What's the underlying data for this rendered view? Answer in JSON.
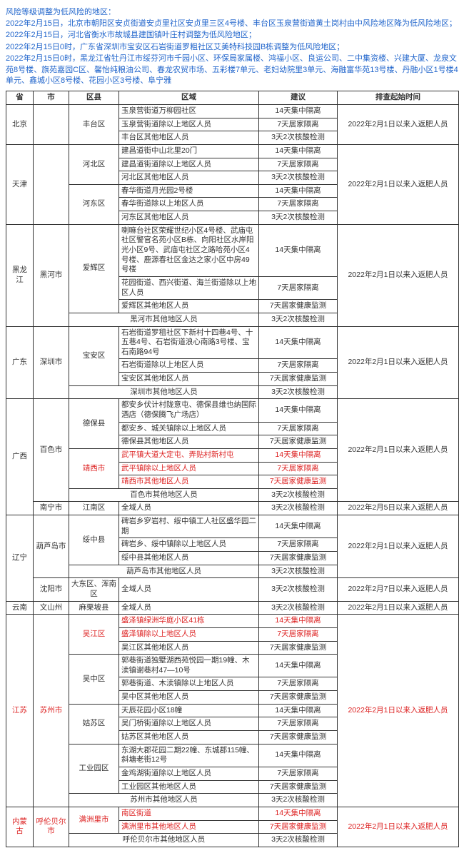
{
  "announce": {
    "title": "风险等级调整为低风险的地区：",
    "lines": [
      "2022年2月15日，北京市朝阳区安贞街道安贞里社区安贞里三区4号楼、丰台区玉泉营街道黄土岗村由中风险地区降为低风险地区；",
      "2022年2月15日，河北省衡水市故城县建国镇叶庄村调整为低风险地区；",
      "2022年2月15日0时，广东省深圳市宝安区石岩街道罗粗社区艾美特科技园B栋调整为低风险地区；",
      "2022年2月15日0时，黑龙江省牡丹江市绥芬河市千园小区、环保局家属楼、鸿福小区、良运公司、二中集资楼、兴建大厦、龙泉文苑8号楼、旗苑嘉园C区、馨怡纯粮油公司、春龙农贸市场、五彩楼7单元、老妇幼院里3单元、海融富华苑13号楼、丹融小区1号楼4单元、鑫城小区8号楼、花园小区3号楼、阜宁雅"
    ]
  },
  "columns": {
    "c1": "省",
    "c2": "市",
    "c3": "区县",
    "c4": "区域",
    "c5": "建议",
    "c6": "排查起始时间"
  },
  "widths": {
    "c1": 38,
    "c2": 50,
    "c3": 70,
    "c4": 196,
    "c5": 110,
    "c6": 170
  },
  "rows": [
    {
      "prov": [
        "北京",
        3
      ],
      "city": [
        "",
        3
      ],
      "county": [
        "丰台区",
        3
      ],
      "area": "玉泉营街道万柳园社区",
      "advice": "14天集中隔离",
      "time": [
        "2022年2月1日以来入返肥人员",
        3
      ]
    },
    {
      "area": "玉泉营街道除以上地区人员",
      "advice": "7天居家隔离"
    },
    {
      "area": "丰台区其他地区人员",
      "advice": "3天2次核酸检测"
    },
    {
      "prov": [
        "天津",
        6
      ],
      "city": [
        "",
        6
      ],
      "county": [
        "河北区",
        3
      ],
      "area": "建昌道街中山北里20门",
      "advice": "14天集中隔离",
      "time": [
        "2022年2月1日以来入返肥人员",
        6
      ]
    },
    {
      "area": "建昌道街道除以上地区人员",
      "advice": "7天居家隔离"
    },
    {
      "area": "河北区其他地区人员",
      "advice": "3天2次核酸检测"
    },
    {
      "county": [
        "河东区",
        3,
        "first"
      ],
      "area": "春华街道月光园2号楼",
      "advice": "14天集中隔离"
    },
    {
      "area": "春华街道除以上地区人员",
      "advice": "7天居家隔离"
    },
    {
      "area": "河东区其他地区人员",
      "advice": "3天2次核酸检测"
    },
    {
      "prov": [
        "黑龙江",
        4
      ],
      "city": [
        "黑河市",
        4
      ],
      "county": [
        "爱辉区",
        3
      ],
      "area": "喇嘛台社区荣耀世纪小区4号楼、武庙屯社区警官名苑小区B栋、向阳社区水岸阳光小区9号、武庙屯社区之路哈苑小区4号楼、鹿源春社区金达之家小区中房49号楼",
      "advice": "14天集中隔离",
      "time": [
        "2022年2月1日以来入返肥人员",
        4
      ]
    },
    {
      "area": "花园街道、西兴街道、海兰街道除以上地区人员",
      "advice": "7天居家隔离"
    },
    {
      "area": "爱辉区其他地区人员",
      "advice": "7天居家健康监测"
    },
    {
      "county": [
        "黑河市其他地区人员",
        1,
        "span3"
      ],
      "advice": "3天2次核酸检测"
    },
    {
      "prov": [
        "广东",
        4
      ],
      "city": [
        "深圳市",
        4
      ],
      "county": [
        "宝安区",
        3
      ],
      "area": "石岩街道罗租社区下新村十四巷4号、十五巷4号、石岩街道浪心南路3号楼、宝石南路94号",
      "advice": "14天集中隔离",
      "time": [
        "2022年2月1日以来入返肥人员",
        4
      ]
    },
    {
      "area": "石岩街道除以上地区人员",
      "advice": "7天居家隔离"
    },
    {
      "area": "宝安区其他地区人员",
      "advice": "7天居家健康监测"
    },
    {
      "county": [
        "深圳市其他地区人员",
        1,
        "span3"
      ],
      "advice": "3天2次核酸检测"
    },
    {
      "prov": [
        "广西",
        8
      ],
      "city": [
        "百色市",
        7
      ],
      "county": [
        "德保县",
        3
      ],
      "area": "都安乡伏计村陇意屯、德保县维也纳国际酒店（德保腾飞广场店）",
      "advice": "14天集中隔离",
      "time": [
        "2022年2月1日以来入返肥人员",
        7
      ]
    },
    {
      "area": "都安乡、城关镇除以上地区人员",
      "advice": "7天居家隔离"
    },
    {
      "area": "德保县其他地区人员",
      "advice": "7天居家健康监测"
    },
    {
      "county": [
        "靖西市",
        3,
        "first",
        "red"
      ],
      "area": "武平镇大道大定屯、弄贴村新村屯",
      "advice": "14天集中隔离",
      "areaRed": true,
      "adviceRed": true
    },
    {
      "area": "武平镇除以上地区人员",
      "advice": "7天居家隔离",
      "areaRed": true,
      "adviceRed": true
    },
    {
      "area": "靖西市其他地区人员",
      "advice": "7天居家健康监测",
      "areaRed": true,
      "adviceRed": true
    },
    {
      "county": [
        "百色市其他地区人员",
        1,
        "span3"
      ],
      "advice": "3天2次核酸检测"
    },
    {
      "city": [
        "南宁市",
        1,
        "first"
      ],
      "county": [
        "江南区",
        1
      ],
      "area": "全域人员",
      "advice": "3天2次核酸检测",
      "time": [
        "2022年2月5日以来入返肥人员",
        1
      ]
    },
    {
      "prov": [
        "辽宁",
        5
      ],
      "city": [
        "葫芦岛市",
        4
      ],
      "county": [
        "绥中县",
        3
      ],
      "area": "碑岩乡穸岩村、绥中镇工人社区盛华园二期",
      "advice": "14天集中隔离",
      "time": [
        "2022年2月1日以来入返肥人员",
        4
      ]
    },
    {
      "area": "碑岩乡、绥中镇除以上地区人员",
      "advice": "7天居家隔离"
    },
    {
      "area": "绥中县其他地区人员",
      "advice": "7天居家健康监测"
    },
    {
      "county": [
        "葫芦岛市其他地区人员",
        1,
        "span3"
      ],
      "advice": "3天2次核酸检测"
    },
    {
      "city": [
        "沈阳市",
        1,
        "first"
      ],
      "county": [
        "大东区、浑南区",
        1
      ],
      "area": "全域人员",
      "advice": "3天2次核酸检测",
      "time": [
        "2022年2月7日以来入返肥人员",
        1
      ]
    },
    {
      "prov": [
        "云南",
        1
      ],
      "city": [
        "文山州",
        1
      ],
      "county": [
        "麻栗坡县",
        1
      ],
      "area": "全域人员",
      "advice": "3天2次核酸检测",
      "time": [
        "2022年2月1日以来入返肥人员",
        1
      ]
    },
    {
      "prov": [
        "江苏",
        13,
        "red"
      ],
      "city": [
        "苏州市",
        13,
        "",
        "red"
      ],
      "county": [
        "吴江区",
        3,
        "",
        "red"
      ],
      "area": "盛泽镇绿洲华庭小区41栋",
      "advice": "14天集中隔离",
      "time": [
        "2022年2月1日以来入返肥人员",
        13,
        "red"
      ],
      "areaRed": true,
      "adviceRed": true
    },
    {
      "area": "盛泽镇除以上地区人员",
      "advice": "7天居家隔离",
      "areaRed": true,
      "adviceRed": true
    },
    {
      "area": "吴江区其他地区人员",
      "advice": "7天居家健康监测"
    },
    {
      "county": [
        "吴中区",
        3,
        "first"
      ],
      "area": "郭巷街道独墅湖西苑悦园一期19幢、木渎镇谢巷村47—10号",
      "advice": "14天集中隔离"
    },
    {
      "area": "郭巷街道、木渎镇除以上地区人员",
      "advice": "7天居家隔离"
    },
    {
      "area": "吴中区其他地区人员",
      "advice": "7天居家健康监测"
    },
    {
      "county": [
        "姑苏区",
        3,
        "first"
      ],
      "area": "天辰花园小区18幢",
      "advice": "14天集中隔离"
    },
    {
      "area": "吴门桥街道除以上地区人员",
      "advice": "7天居家隔离"
    },
    {
      "area": "姑苏区其他地区人员",
      "advice": "7天居家健康监测"
    },
    {
      "county": [
        "工业园区",
        3,
        "first"
      ],
      "area": "东湖大郡花园二期22幢、东城郡115幢、斜塘老街12号",
      "advice": "14天集中隔离"
    },
    {
      "area": "金鸡湖街道除以上地区人员",
      "advice": "7天居家隔离"
    },
    {
      "area": "工业园区其他地区人员",
      "advice": "7天居家健康监测"
    },
    {
      "county": [
        "苏州市其他地区人员",
        1,
        "span3"
      ],
      "advice": "3天2次核酸检测"
    },
    {
      "prov": [
        "内蒙古",
        3,
        "red"
      ],
      "city": [
        "呼伦贝尔市",
        3,
        "",
        "red"
      ],
      "county": [
        "满洲里市",
        2,
        "",
        "red"
      ],
      "area": "南区街道",
      "advice": "14天集中隔离",
      "time": [
        "2022年2月1日以来入返肥人员",
        3,
        "red"
      ],
      "areaRed": true,
      "adviceRed": true
    },
    {
      "area": "满洲里市其他地区人员",
      "advice": "7天居家健康监测",
      "areaRed": true,
      "adviceRed": true
    },
    {
      "county": [
        "呼伦贝尔市其他地区人员",
        1,
        "span3"
      ],
      "advice": "3天2次核酸检测"
    }
  ]
}
